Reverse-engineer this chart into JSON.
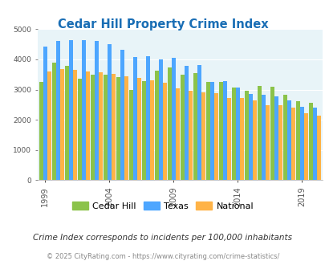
{
  "title": "Cedar Hill Property Crime Index",
  "years": [
    1999,
    2000,
    2001,
    2002,
    2003,
    2004,
    2005,
    2006,
    2007,
    2008,
    2009,
    2010,
    2011,
    2012,
    2013,
    2014,
    2015,
    2016,
    2017,
    2018,
    2019,
    2020
  ],
  "cedar_hill": [
    3250,
    3900,
    3780,
    3370,
    3480,
    3500,
    3400,
    3000,
    3280,
    3630,
    3720,
    3490,
    3550,
    3250,
    3260,
    3070,
    2960,
    3110,
    3100,
    2820,
    2620,
    2560
  ],
  "texas": [
    4420,
    4600,
    4640,
    4640,
    4620,
    4500,
    4320,
    4080,
    4110,
    4000,
    4050,
    3790,
    3810,
    3260,
    3270,
    3060,
    2850,
    2830,
    2780,
    2630,
    2430,
    2410
  ],
  "national": [
    3600,
    3680,
    3650,
    3610,
    3580,
    3510,
    3450,
    3380,
    3320,
    3240,
    3040,
    2960,
    2920,
    2870,
    2730,
    2720,
    2640,
    2490,
    2470,
    2390,
    2220,
    2130
  ],
  "cedar_hill_color": "#8bc34a",
  "texas_color": "#4da6ff",
  "national_color": "#ffb347",
  "plot_bg_color": "#e8f4f8",
  "title_color": "#1a6eb5",
  "legend_labels": [
    "Cedar Hill",
    "Texas",
    "National"
  ],
  "footnote": "Crime Index corresponds to incidents per 100,000 inhabitants",
  "copyright": "© 2025 CityRating.com - https://www.cityrating.com/crime-statistics/",
  "ylim": [
    0,
    5000
  ],
  "yticks": [
    0,
    1000,
    2000,
    3000,
    4000,
    5000
  ],
  "xlabel_years": [
    1999,
    2004,
    2009,
    2014,
    2019
  ]
}
